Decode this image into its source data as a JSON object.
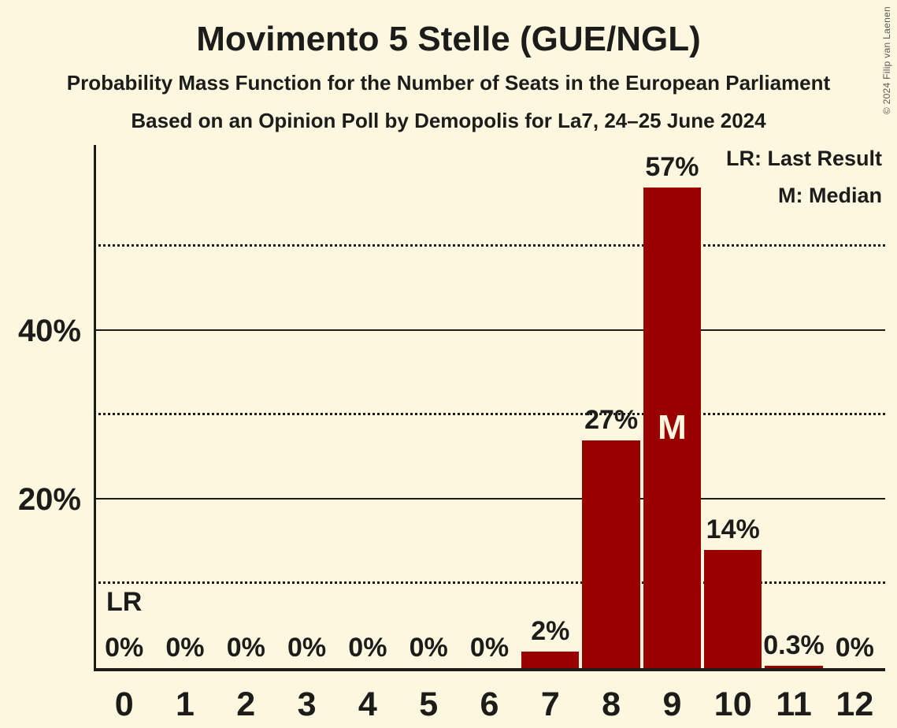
{
  "copyright": "© 2024 Filip van Laenen",
  "chart_data": {
    "type": "bar",
    "title": "Movimento 5 Stelle (GUE/NGL)",
    "subtitle": "Probability Mass Function for the Number of Seats in the European Parliament",
    "source_line": "Based on an Opinion Poll by Demopolis for La7, 24–25 June 2024",
    "xlabel": "",
    "ylabel": "",
    "categories": [
      "0",
      "1",
      "2",
      "3",
      "4",
      "5",
      "6",
      "7",
      "8",
      "9",
      "10",
      "11",
      "12"
    ],
    "values": [
      0,
      0,
      0,
      0,
      0,
      0,
      0,
      2,
      27,
      57,
      14,
      0.3,
      0
    ],
    "bar_labels": [
      "0%",
      "0%",
      "0%",
      "0%",
      "0%",
      "0%",
      "0%",
      "2%",
      "27%",
      "57%",
      "14%",
      "0.3%",
      "0%"
    ],
    "ylim": [
      0,
      62
    ],
    "yticks": [
      {
        "value": 20,
        "label": "20%"
      },
      {
        "value": 40,
        "label": "40%"
      }
    ],
    "gridlines": {
      "dotted": [
        10,
        30,
        50
      ],
      "solid": [
        20,
        40
      ]
    },
    "legend": [
      "LR: Last Result",
      "M: Median"
    ],
    "annotations": {
      "last_result": {
        "category": "0",
        "label": "LR"
      },
      "median": {
        "category": "9",
        "label": "M"
      }
    },
    "colors": {
      "bar": "#990000",
      "background": "#FDF7E0",
      "text": "#1C1C1A",
      "median_label": "#FDF7E0",
      "copyright": "#5A5A52"
    }
  }
}
